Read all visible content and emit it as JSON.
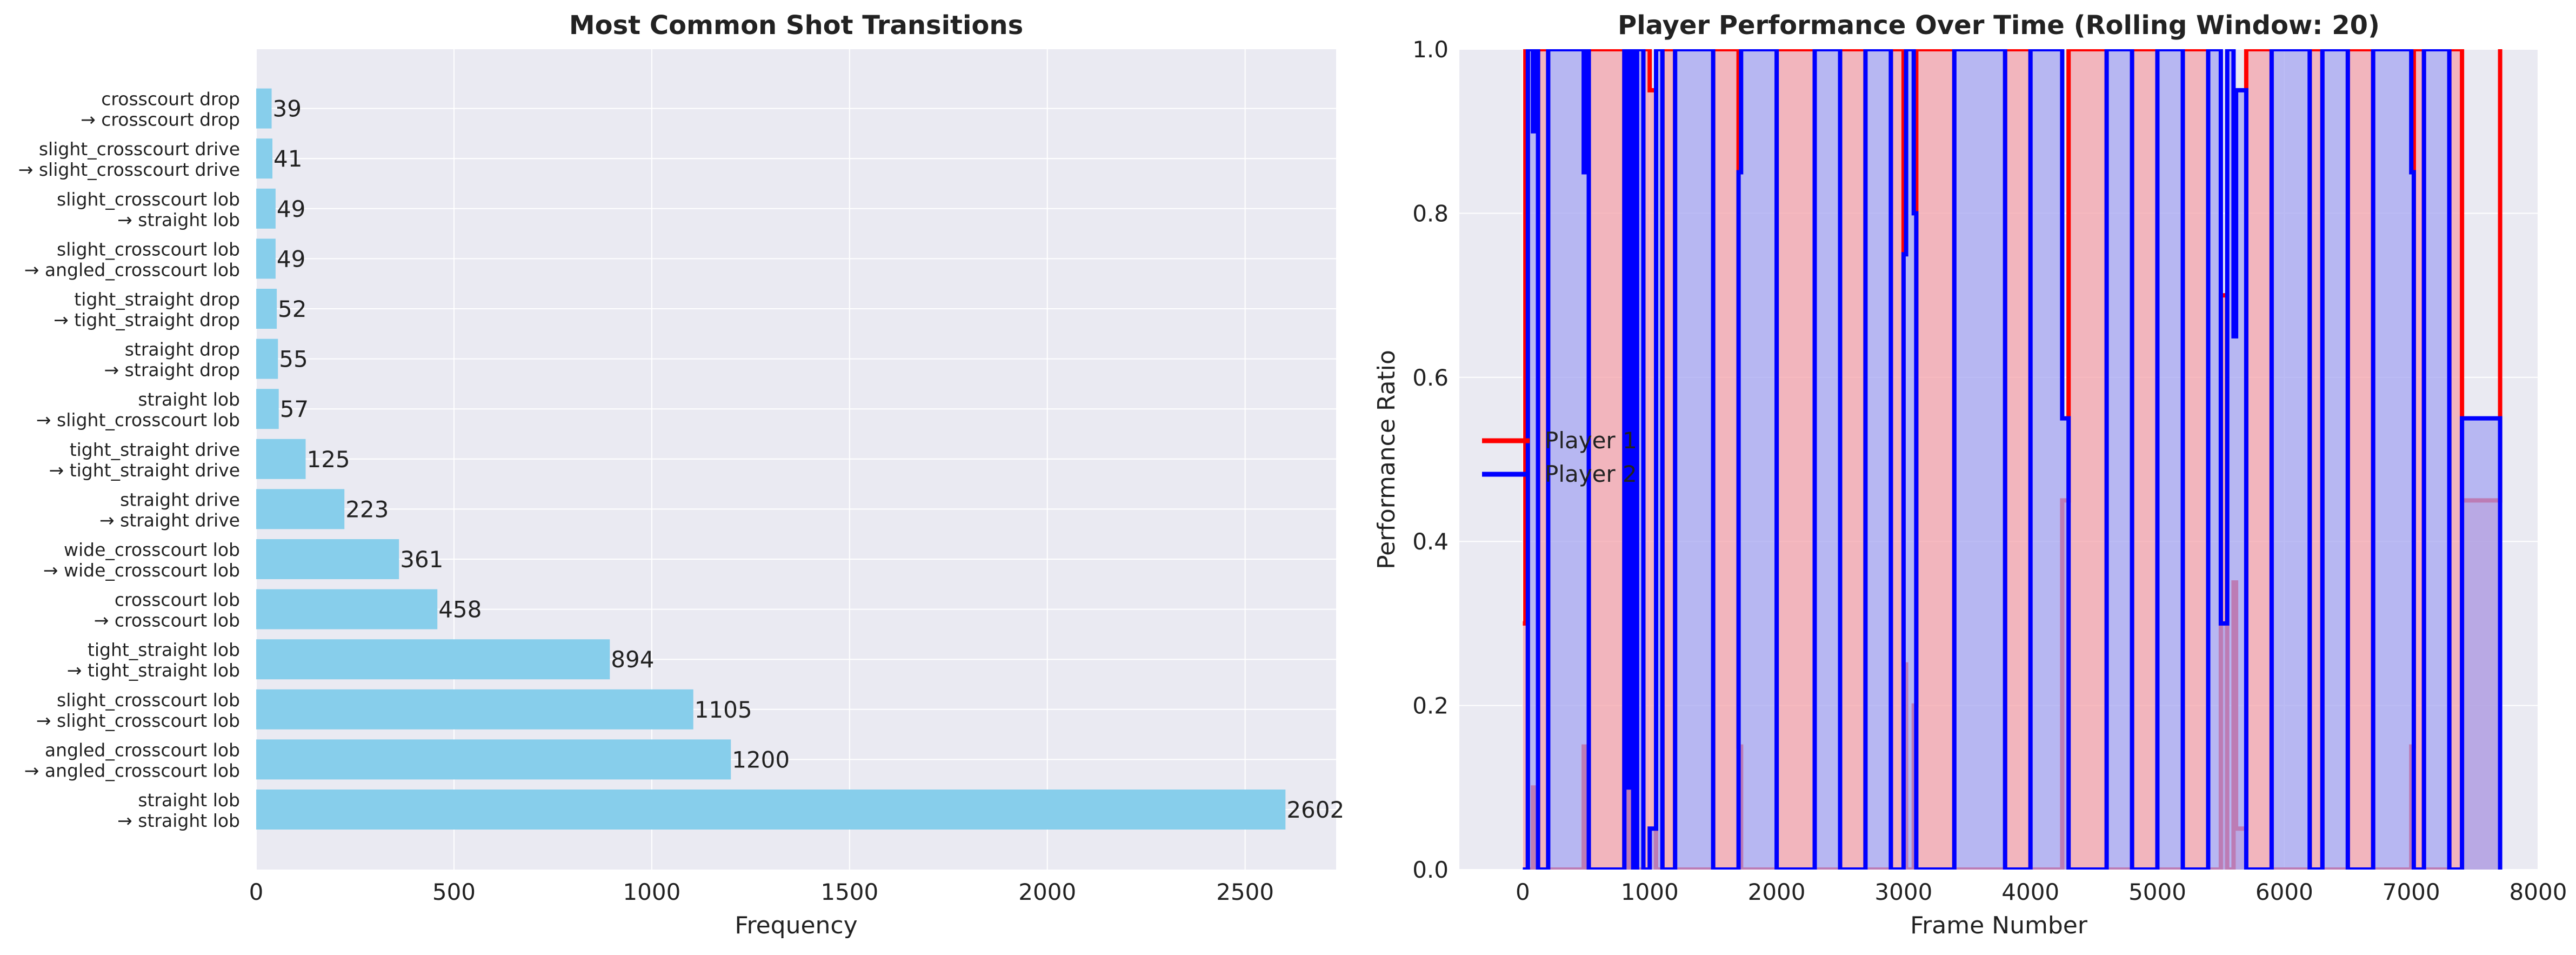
{
  "chart_data": [
    {
      "type": "bar",
      "orientation": "horizontal",
      "title": "Most Common Shot Transitions",
      "xlabel": "Frequency",
      "ylabel": "",
      "xlim": [
        0,
        2730
      ],
      "xticks": [
        "0",
        "500",
        "1000",
        "1500",
        "2000",
        "2500"
      ],
      "grid": true,
      "bar_color": "#87CEEB",
      "categories": [
        {
          "from": "straight lob",
          "to": "→ straight lob"
        },
        {
          "from": "angled_crosscourt lob",
          "to": "→ angled_crosscourt lob"
        },
        {
          "from": "slight_crosscourt lob",
          "to": "→ slight_crosscourt lob"
        },
        {
          "from": "tight_straight lob",
          "to": "→ tight_straight lob"
        },
        {
          "from": "crosscourt lob",
          "to": "→ crosscourt lob"
        },
        {
          "from": "wide_crosscourt lob",
          "to": "→ wide_crosscourt lob"
        },
        {
          "from": "straight drive",
          "to": "→ straight drive"
        },
        {
          "from": "tight_straight drive",
          "to": "→ tight_straight drive"
        },
        {
          "from": "straight lob",
          "to": "→ slight_crosscourt lob"
        },
        {
          "from": "straight drop",
          "to": "→ straight drop"
        },
        {
          "from": "tight_straight drop",
          "to": "→ tight_straight drop"
        },
        {
          "from": "slight_crosscourt lob",
          "to": "→ angled_crosscourt lob"
        },
        {
          "from": "slight_crosscourt lob",
          "to": "→ straight lob"
        },
        {
          "from": "slight_crosscourt drive",
          "to": "→ slight_crosscourt drive"
        },
        {
          "from": "crosscourt drop",
          "to": "→ crosscourt drop"
        }
      ],
      "values": [
        2602,
        1200,
        1105,
        894,
        458,
        361,
        223,
        125,
        57,
        55,
        52,
        49,
        49,
        41,
        39
      ],
      "value_labels": [
        "2602",
        "1200",
        "1105",
        "894",
        "458",
        "361",
        "223",
        "125",
        "57",
        "55",
        "52",
        "49",
        "49",
        "41",
        "39"
      ]
    },
    {
      "type": "line",
      "title": "Player Performance Over Time (Rolling Window: 20)",
      "xlabel": "Frame Number",
      "ylabel": "Performance Ratio",
      "xlim": [
        -500,
        8000
      ],
      "ylim": [
        0,
        1.0
      ],
      "xticks": [
        "0",
        "1000",
        "2000",
        "3000",
        "4000",
        "5000",
        "6000",
        "7000",
        "8000"
      ],
      "yticks": [
        "0.0",
        "0.2",
        "0.4",
        "0.6",
        "0.8",
        "1.0"
      ],
      "grid": true,
      "legend_position": "center-left",
      "series": [
        {
          "name": "Player 1",
          "color": "#FF0000",
          "fill": "#F4A3AB",
          "x": [
            0,
            20,
            40,
            80,
            100,
            120,
            200,
            480,
            500,
            520,
            800,
            820,
            850,
            870,
            900,
            950,
            1000,
            1050,
            1100,
            1200,
            1500,
            1700,
            1720,
            2000,
            2300,
            2500,
            2700,
            2900,
            3000,
            3020,
            3080,
            3100,
            3400,
            3800,
            4000,
            4250,
            4300,
            4600,
            4800,
            5000,
            5200,
            5400,
            5500,
            5550,
            5600,
            5620,
            5700,
            5900,
            6200,
            6300,
            6500,
            6700,
            7000,
            7020,
            7100,
            7300,
            7400,
            7700
          ],
          "y": [
            0.3,
            1.0,
            0.0,
            0.1,
            0.0,
            1.0,
            0.0,
            0.15,
            0.0,
            1.0,
            0.0,
            0.9,
            0.0,
            1.0,
            0.0,
            1.0,
            0.95,
            0.0,
            1.0,
            0.0,
            1.0,
            0.15,
            0.0,
            1.0,
            0.0,
            1.0,
            0.0,
            1.0,
            0.25,
            0.0,
            0.2,
            1.0,
            0.0,
            1.0,
            0.0,
            0.45,
            1.0,
            0.0,
            1.0,
            0.0,
            1.0,
            0.0,
            0.7,
            0.0,
            0.35,
            0.05,
            1.0,
            0.0,
            1.0,
            0.0,
            1.0,
            0.0,
            0.15,
            1.0,
            0.0,
            1.0,
            0.45,
            1.0
          ]
        },
        {
          "name": "Player 2",
          "color": "#0000FF",
          "fill": "#A5A5F2",
          "x": [
            0,
            20,
            40,
            80,
            100,
            120,
            200,
            480,
            500,
            520,
            800,
            820,
            850,
            870,
            900,
            950,
            1000,
            1050,
            1100,
            1200,
            1500,
            1700,
            1720,
            2000,
            2300,
            2500,
            2700,
            2900,
            3000,
            3020,
            3080,
            3100,
            3400,
            3800,
            4000,
            4250,
            4300,
            4600,
            4800,
            5000,
            5200,
            5400,
            5500,
            5550,
            5600,
            5620,
            5700,
            5900,
            6200,
            6300,
            6500,
            6700,
            7000,
            7020,
            7100,
            7300,
            7400,
            7700
          ],
          "y": [
            0.0,
            0.0,
            1.0,
            0.9,
            1.0,
            0.0,
            1.0,
            0.85,
            1.0,
            0.0,
            1.0,
            0.1,
            1.0,
            0.0,
            1.0,
            0.0,
            0.05,
            1.0,
            0.0,
            1.0,
            0.0,
            0.85,
            1.0,
            0.0,
            1.0,
            0.0,
            1.0,
            0.0,
            0.75,
            1.0,
            0.8,
            0.0,
            1.0,
            0.0,
            1.0,
            0.55,
            0.0,
            1.0,
            0.0,
            1.0,
            0.0,
            1.0,
            0.3,
            1.0,
            0.65,
            0.95,
            0.0,
            1.0,
            0.0,
            1.0,
            0.0,
            1.0,
            0.85,
            0.0,
            1.0,
            0.0,
            0.55,
            0.0
          ]
        }
      ]
    }
  ]
}
